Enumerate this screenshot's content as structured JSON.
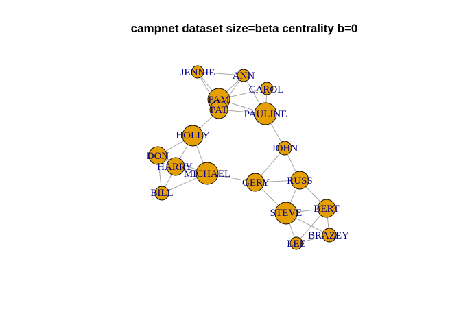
{
  "title": "campnet dataset size=beta centrality b=0",
  "colors": {
    "node_fill": "#E69F00",
    "node_stroke": "#000000",
    "edge": "#A6A6A6",
    "label": "#00008B"
  },
  "nodes": [
    {
      "id": "JENNIE",
      "label": "JENNIE"
    },
    {
      "id": "ANN",
      "label": "ANN"
    },
    {
      "id": "CAROL",
      "label": "CAROL"
    },
    {
      "id": "PAM",
      "label": "PAM"
    },
    {
      "id": "PAT",
      "label": "PAT"
    },
    {
      "id": "PAULINE",
      "label": "PAULINE"
    },
    {
      "id": "HOLLY",
      "label": "HOLLY"
    },
    {
      "id": "JOHN",
      "label": "JOHN"
    },
    {
      "id": "DON",
      "label": "DON"
    },
    {
      "id": "HARRY",
      "label": "HARRY"
    },
    {
      "id": "MICHAEL",
      "label": "MICHAEL"
    },
    {
      "id": "GERY",
      "label": "GERY"
    },
    {
      "id": "RUSS",
      "label": "RUSS"
    },
    {
      "id": "BILL",
      "label": "BILL"
    },
    {
      "id": "STEVE",
      "label": "STEVE"
    },
    {
      "id": "BERT",
      "label": "BERT"
    },
    {
      "id": "BRAZEY",
      "label": "BRAZEY"
    },
    {
      "id": "LEE",
      "label": "LEE"
    }
  ],
  "edges": [
    [
      "JENNIE",
      "ANN"
    ],
    [
      "JENNIE",
      "PAM"
    ],
    [
      "JENNIE",
      "PAT"
    ],
    [
      "ANN",
      "PAM"
    ],
    [
      "ANN",
      "PAT"
    ],
    [
      "ANN",
      "PAULINE"
    ],
    [
      "CAROL",
      "PAM"
    ],
    [
      "CAROL",
      "PAULINE"
    ],
    [
      "PAM",
      "PAT"
    ],
    [
      "PAM",
      "PAULINE"
    ],
    [
      "PAT",
      "PAULINE"
    ],
    [
      "PAT",
      "HOLLY"
    ],
    [
      "PAULINE",
      "JOHN"
    ],
    [
      "HOLLY",
      "DON"
    ],
    [
      "HOLLY",
      "HARRY"
    ],
    [
      "HOLLY",
      "MICHAEL"
    ],
    [
      "DON",
      "HARRY"
    ],
    [
      "DON",
      "MICHAEL"
    ],
    [
      "DON",
      "BILL"
    ],
    [
      "HARRY",
      "BILL"
    ],
    [
      "HARRY",
      "MICHAEL"
    ],
    [
      "BILL",
      "MICHAEL"
    ],
    [
      "MICHAEL",
      "GERY"
    ],
    [
      "JOHN",
      "GERY"
    ],
    [
      "JOHN",
      "RUSS"
    ],
    [
      "GERY",
      "RUSS"
    ],
    [
      "GERY",
      "STEVE"
    ],
    [
      "RUSS",
      "STEVE"
    ],
    [
      "RUSS",
      "BERT"
    ],
    [
      "STEVE",
      "BERT"
    ],
    [
      "STEVE",
      "LEE"
    ],
    [
      "STEVE",
      "BRAZEY"
    ],
    [
      "BERT",
      "BRAZEY"
    ],
    [
      "BERT",
      "LEE"
    ],
    [
      "LEE",
      "BRAZEY"
    ]
  ]
}
